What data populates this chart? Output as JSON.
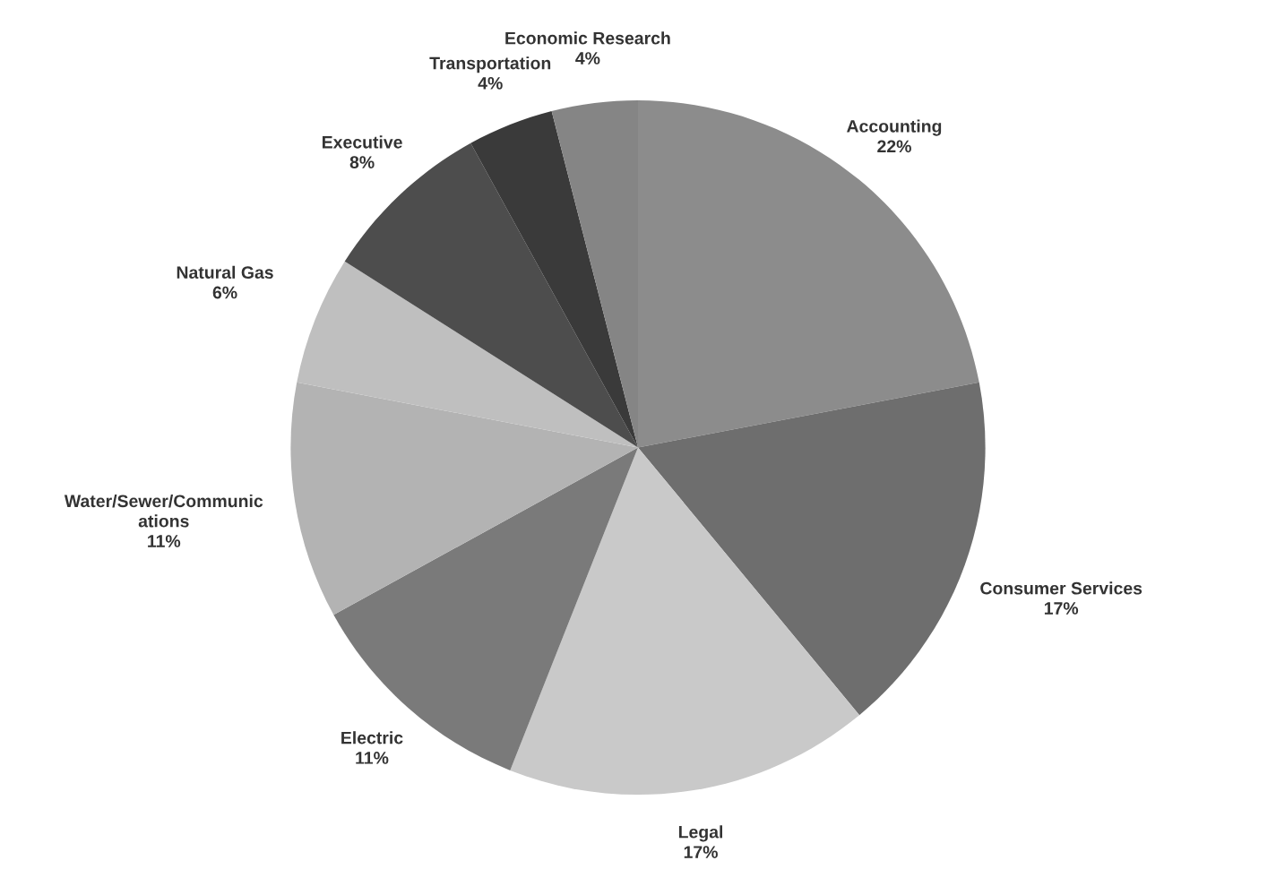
{
  "chart_data": {
    "type": "pie",
    "categories": [
      "Accounting",
      "Consumer Services",
      "Legal",
      "Electric",
      "Water/Sewer/Communic\nations",
      "Natural Gas",
      "Executive",
      "Transportation",
      "Economic Research"
    ],
    "values": [
      22,
      17,
      17,
      11,
      11,
      6,
      8,
      4,
      4
    ],
    "value_labels": [
      "22%",
      "17%",
      "17%",
      "11%",
      "11%",
      "6%",
      "8%",
      "4%",
      "4%"
    ],
    "colors": [
      "#8c8c8c",
      "#6e6e6e",
      "#c9c9c9",
      "#7a7a7a",
      "#b3b3b3",
      "#bfbfbf",
      "#4d4d4d",
      "#3a3a3a",
      "#858585"
    ],
    "legend": false
  }
}
